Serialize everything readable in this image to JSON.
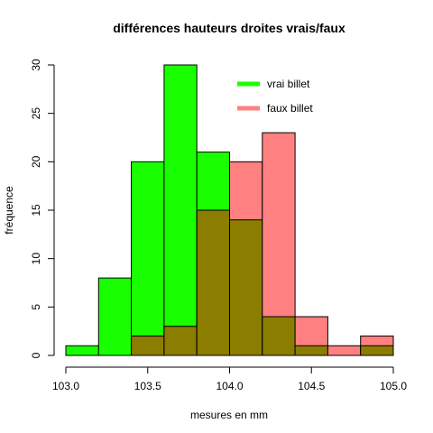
{
  "chart_data": {
    "type": "bar",
    "title": "différences hauteurs droites vrais/faux",
    "xlabel": "mesures en mm",
    "ylabel": "fréquence",
    "xlim": [
      103.0,
      105.0
    ],
    "ylim": [
      0,
      30
    ],
    "x_ticks": [
      "103.0",
      "103.5",
      "104.0",
      "104.5",
      "105.0"
    ],
    "y_ticks": [
      "0",
      "5",
      "10",
      "15",
      "20",
      "25",
      "30"
    ],
    "grid": false,
    "legend_position": "top-right",
    "bin_edges": [
      103.0,
      103.2,
      103.4,
      103.6,
      103.8,
      104.0,
      104.2,
      104.4,
      104.6,
      104.8,
      105.0
    ],
    "series": [
      {
        "name": "vrai billet",
        "color": "#1aff00",
        "values": [
          1,
          8,
          20,
          30,
          21,
          14,
          4,
          1,
          0,
          1
        ]
      },
      {
        "name": "faux billet",
        "color": "#ff8080",
        "values": [
          0,
          0,
          2,
          3,
          15,
          20,
          23,
          4,
          1,
          2
        ]
      }
    ],
    "overlap_color": "#8b7d00"
  }
}
